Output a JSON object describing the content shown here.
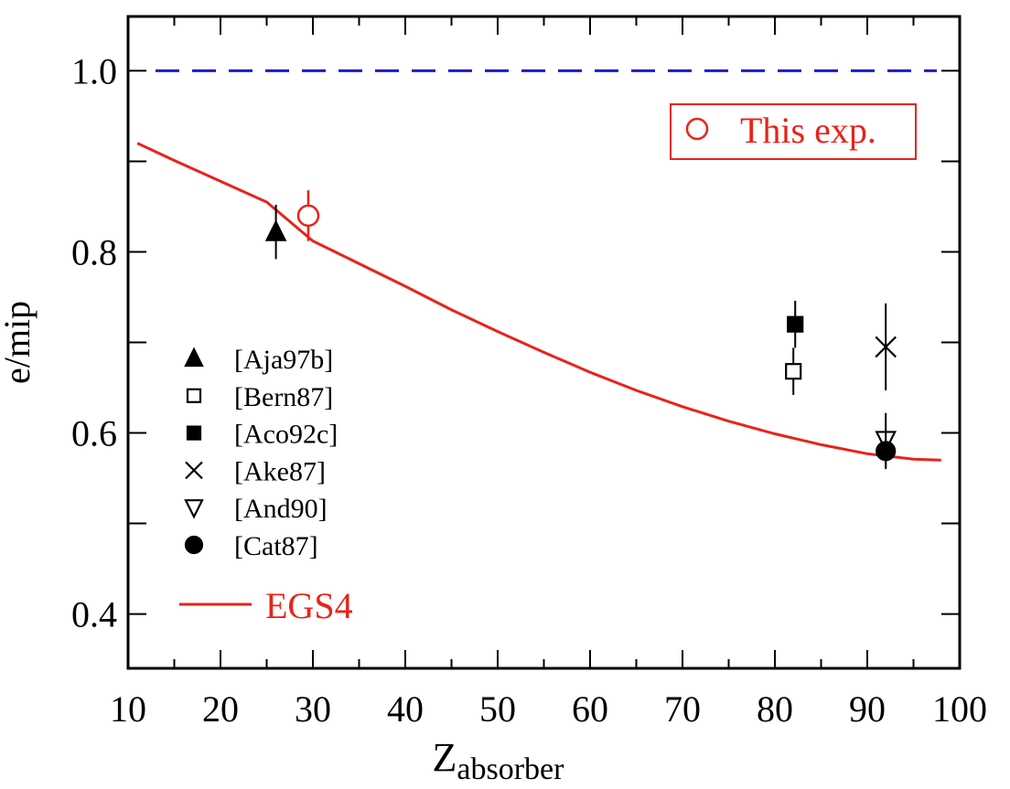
{
  "chart_data": {
    "type": "scatter",
    "xlabel_main": "Z",
    "xlabel_sub": "absorber",
    "ylabel": "e/mip",
    "xlim": [
      10,
      100
    ],
    "ylim": [
      0.34,
      1.06
    ],
    "x_ticks": [
      10,
      20,
      30,
      40,
      50,
      60,
      70,
      80,
      90,
      100
    ],
    "x_tick_labels": [
      "10",
      "20",
      "30",
      "40",
      "50",
      "60",
      "70",
      "80",
      "90",
      "100"
    ],
    "y_ticks": [
      0.4,
      0.6,
      0.8,
      1.0
    ],
    "y_tick_labels": [
      "0.4",
      "0.6",
      "0.8",
      "1.0"
    ],
    "y_minor_ticks": [
      0.5,
      0.7,
      0.9
    ],
    "grid": false,
    "reference_line": {
      "y": 1.0,
      "style": "dashed",
      "color": "#1a1acc"
    },
    "this_exp": {
      "label": "This exp.",
      "color": "#e8231a",
      "points": [
        {
          "x": 29.5,
          "y": 0.84,
          "err": 0.028
        }
      ]
    },
    "series": [
      {
        "name": "[Aja97b]",
        "marker": "triangle-up-filled",
        "points": [
          {
            "x": 26,
            "y": 0.822,
            "err": 0.03
          }
        ]
      },
      {
        "name": "[Bern87]",
        "marker": "square-open",
        "points": [
          {
            "x": 82,
            "y": 0.668,
            "err": 0.026
          }
        ]
      },
      {
        "name": "[Aco92c]",
        "marker": "square-filled",
        "points": [
          {
            "x": 82.2,
            "y": 0.72,
            "err": 0.026
          }
        ]
      },
      {
        "name": "[Ake87]",
        "marker": "x",
        "points": [
          {
            "x": 92,
            "y": 0.695,
            "err": 0.048
          }
        ]
      },
      {
        "name": "[And90]",
        "marker": "triangle-down-open",
        "points": [
          {
            "x": 92,
            "y": 0.592,
            "err": 0.03
          }
        ]
      },
      {
        "name": "[Cat87]",
        "marker": "circle-filled",
        "points": [
          {
            "x": 92,
            "y": 0.58,
            "err": 0.02
          }
        ]
      }
    ],
    "curve": {
      "name": "EGS4",
      "color": "#e8231a",
      "x": [
        11,
        15,
        20,
        25,
        30,
        35,
        40,
        45,
        50,
        55,
        60,
        65,
        70,
        75,
        80,
        85,
        90,
        95,
        98
      ],
      "y": [
        0.92,
        0.901,
        0.878,
        0.855,
        0.812,
        0.787,
        0.762,
        0.736,
        0.712,
        0.689,
        0.667,
        0.647,
        0.629,
        0.613,
        0.599,
        0.587,
        0.577,
        0.571,
        0.57
      ]
    },
    "legend_placement": "left"
  }
}
